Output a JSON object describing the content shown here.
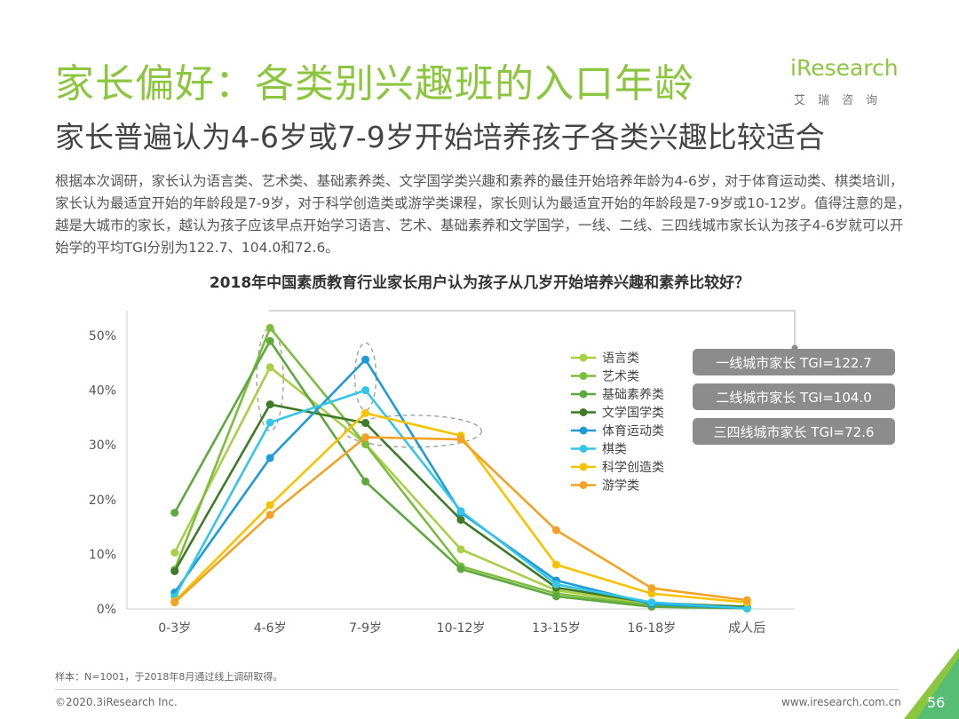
{
  "header": {
    "title": "家长偏好：各类别兴趣班的入口年龄",
    "subtitle": "家长普遍认为4-6岁或7-9岁开始培养孩子各类兴趣比较适合"
  },
  "logo": {
    "word": "iResearch",
    "sub": "艾瑞咨询"
  },
  "intro": "根据本次调研，家长认为语言类、艺术类、基础素养类、文学国学类兴趣和素养的最佳开始培养年龄为4-6岁，对于体育运动类、棋类培训，家长认为最适宜开始的年龄段是7-9岁，对于科学创造类或游学类课程，家长则认为最适宜开始的年龄段是7-9岁或10-12岁。值得注意的是，越是大城市的家长，越认为孩子应该早点开始学习语言、艺术、基础素养和文学国学，一线、二线、三四线城市家长认为孩子4-6岁就可以开始学的平均TGI分别为122.7、104.0和72.6。",
  "tgi_boxes": [
    "一线城市家长 TGI=122.7",
    "二线城市家长 TGI=104.0",
    "三四线城市家长 TGI=72.6"
  ],
  "colors": {
    "title": "#8cc63f",
    "tgi_box": "#8c8c8c",
    "accent": "#8cc63f"
  },
  "footer": {
    "note": "样本：N=1001，于2018年8月通过线上调研取得。",
    "copyright": "©2020.3iResearch Inc.",
    "website": "www.iresearch.com.cn",
    "page": "56"
  },
  "chart_data": {
    "type": "line",
    "title": "2018年中国素质教育行业家长用户认为孩子从几岁开始培养兴趣和素养比较好？",
    "categories": [
      "0-3岁",
      "4-6岁",
      "7-9岁",
      "10-12岁",
      "13-15岁",
      "16-18岁",
      "成人后"
    ],
    "ylim": [
      0,
      50
    ],
    "yticks": [
      "0%",
      "10%",
      "20%",
      "30%",
      "40%",
      "50%"
    ],
    "grid": false,
    "legend_position": "right",
    "series": [
      {
        "name": "语言类",
        "color": "#a8cf45",
        "values": [
          10.3,
          44.2,
          30.2,
          10.9,
          3.4,
          0.9,
          0.1
        ]
      },
      {
        "name": "艺术类",
        "color": "#7cbd3c",
        "values": [
          7.2,
          51.4,
          30.1,
          7.8,
          2.8,
          0.6,
          0.1
        ]
      },
      {
        "name": "基础素养类",
        "color": "#5ea840",
        "values": [
          17.6,
          49.0,
          23.3,
          7.3,
          2.3,
          0.4,
          0.1
        ]
      },
      {
        "name": "文学国学类",
        "color": "#3f7a26",
        "values": [
          6.9,
          37.4,
          34.0,
          16.3,
          3.9,
          1.1,
          0.4
        ]
      },
      {
        "name": "体育运动类",
        "color": "#1e9bd7",
        "values": [
          3.0,
          27.6,
          45.6,
          17.6,
          5.2,
          0.9,
          0.1
        ]
      },
      {
        "name": "棋类",
        "color": "#33c6e8",
        "values": [
          2.2,
          34.1,
          40.0,
          17.9,
          4.5,
          1.2,
          0.1
        ]
      },
      {
        "name": "科学创造类",
        "color": "#f7c300",
        "values": [
          1.4,
          19.0,
          35.8,
          31.7,
          8.1,
          2.8,
          1.2
        ]
      },
      {
        "name": "游学类",
        "color": "#f2a225",
        "values": [
          1.2,
          17.2,
          31.4,
          31.0,
          14.4,
          3.8,
          1.6
        ]
      }
    ]
  }
}
